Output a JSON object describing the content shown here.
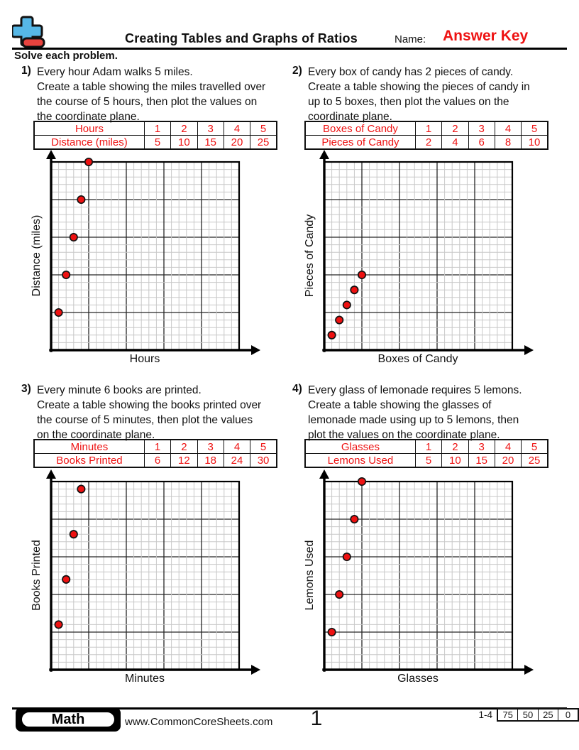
{
  "header": {
    "title": "Creating Tables and Graphs of Ratios",
    "name_label": "Name:",
    "answer_key": "Answer Key",
    "instruction": "Solve each problem."
  },
  "colors": {
    "accent_red": "#ee1212",
    "point_fill": "#ee1111",
    "grid_minor": "#c8c8c8",
    "grid_major": "#262626",
    "logo_blue": "#56b7e6",
    "logo_red": "#e8433e"
  },
  "problems": [
    {
      "number": "1)",
      "lines": [
        "Every hour Adam walks 5 miles.",
        "Create a table showing the miles travelled over",
        "the course of 5 hours, then plot the values on",
        "the coordinate plane."
      ],
      "table": {
        "row1": {
          "label": "Hours",
          "values": [
            "1",
            "2",
            "3",
            "4",
            "5"
          ]
        },
        "row2": {
          "label": "Distance (miles)",
          "values": [
            "5",
            "10",
            "15",
            "20",
            "25"
          ]
        }
      },
      "graph": {
        "xlabel": "Hours",
        "ylabel": "Distance (miles)",
        "axis_max": 25,
        "major_every": 5,
        "points": [
          [
            1,
            5
          ],
          [
            2,
            10
          ],
          [
            3,
            15
          ],
          [
            4,
            20
          ],
          [
            5,
            25
          ]
        ]
      }
    },
    {
      "number": "2)",
      "lines": [
        "Every box of candy has 2 pieces of candy.",
        "Create a table showing the pieces of candy in",
        "up to 5 boxes, then plot the values on the",
        "coordinate plane."
      ],
      "table": {
        "row1": {
          "label": "Boxes of Candy",
          "values": [
            "1",
            "2",
            "3",
            "4",
            "5"
          ]
        },
        "row2": {
          "label": "Pieces of Candy",
          "values": [
            "2",
            "4",
            "6",
            "8",
            "10"
          ]
        }
      },
      "graph": {
        "xlabel": "Boxes of Candy",
        "ylabel": "Pieces of Candy",
        "axis_max": 25,
        "major_every": 5,
        "points": [
          [
            1,
            2
          ],
          [
            2,
            4
          ],
          [
            3,
            6
          ],
          [
            4,
            8
          ],
          [
            5,
            10
          ]
        ]
      }
    },
    {
      "number": "3)",
      "lines": [
        "Every minute 6 books are printed.",
        "Create a table showing the books printed over",
        "the course of 5 minutes, then plot the values",
        "on the coordinate plane."
      ],
      "table": {
        "row1": {
          "label": "Minutes",
          "values": [
            "1",
            "2",
            "3",
            "4",
            "5"
          ]
        },
        "row2": {
          "label": "Books Printed",
          "values": [
            "6",
            "12",
            "18",
            "24",
            "30"
          ]
        }
      },
      "graph": {
        "xlabel": "Minutes",
        "ylabel": "Books Printed",
        "axis_max": 25,
        "major_every": 5,
        "points": [
          [
            1,
            6
          ],
          [
            2,
            12
          ],
          [
            3,
            18
          ],
          [
            4,
            24
          ]
        ]
      }
    },
    {
      "number": "4)",
      "lines": [
        "Every glass of lemonade requires 5 lemons.",
        "Create a table showing the glasses of",
        "lemonade made using up to 5 lemons, then",
        "plot the values on the coordinate plane."
      ],
      "table": {
        "row1": {
          "label": "Glasses",
          "values": [
            "1",
            "2",
            "3",
            "4",
            "5"
          ]
        },
        "row2": {
          "label": "Lemons Used",
          "values": [
            "5",
            "10",
            "15",
            "20",
            "25"
          ]
        }
      },
      "graph": {
        "xlabel": "Glasses",
        "ylabel": "Lemons Used",
        "axis_max": 25,
        "major_every": 5,
        "points": [
          [
            1,
            5
          ],
          [
            2,
            10
          ],
          [
            3,
            15
          ],
          [
            4,
            20
          ],
          [
            5,
            25
          ]
        ]
      }
    }
  ],
  "chart_data": [
    {
      "type": "scatter",
      "title": "",
      "xlabel": "Hours",
      "ylabel": "Distance (miles)",
      "xlim": [
        0,
        25
      ],
      "ylim": [
        0,
        25
      ],
      "grid": "minor 1, major 5",
      "x": [
        1,
        2,
        3,
        4,
        5
      ],
      "y": [
        5,
        10,
        15,
        20,
        25
      ]
    },
    {
      "type": "scatter",
      "title": "",
      "xlabel": "Boxes of Candy",
      "ylabel": "Pieces of Candy",
      "xlim": [
        0,
        25
      ],
      "ylim": [
        0,
        25
      ],
      "grid": "minor 1, major 5",
      "x": [
        1,
        2,
        3,
        4,
        5
      ],
      "y": [
        2,
        4,
        6,
        8,
        10
      ]
    },
    {
      "type": "scatter",
      "title": "",
      "xlabel": "Minutes",
      "ylabel": "Books Printed",
      "xlim": [
        0,
        25
      ],
      "ylim": [
        0,
        25
      ],
      "grid": "minor 1, major 5",
      "x": [
        1,
        2,
        3,
        4
      ],
      "y": [
        6,
        12,
        18,
        24
      ]
    },
    {
      "type": "scatter",
      "title": "",
      "xlabel": "Glasses",
      "ylabel": "Lemons Used",
      "xlim": [
        0,
        25
      ],
      "ylim": [
        0,
        25
      ],
      "grid": "minor 1, major 5",
      "x": [
        1,
        2,
        3,
        4,
        5
      ],
      "y": [
        5,
        10,
        15,
        20,
        25
      ]
    }
  ],
  "footer": {
    "subject": "Math",
    "website": "www.CommonCoreSheets.com",
    "page_number": "1",
    "problem_range": "1-4",
    "score_values": [
      "75",
      "50",
      "25",
      "0"
    ]
  }
}
